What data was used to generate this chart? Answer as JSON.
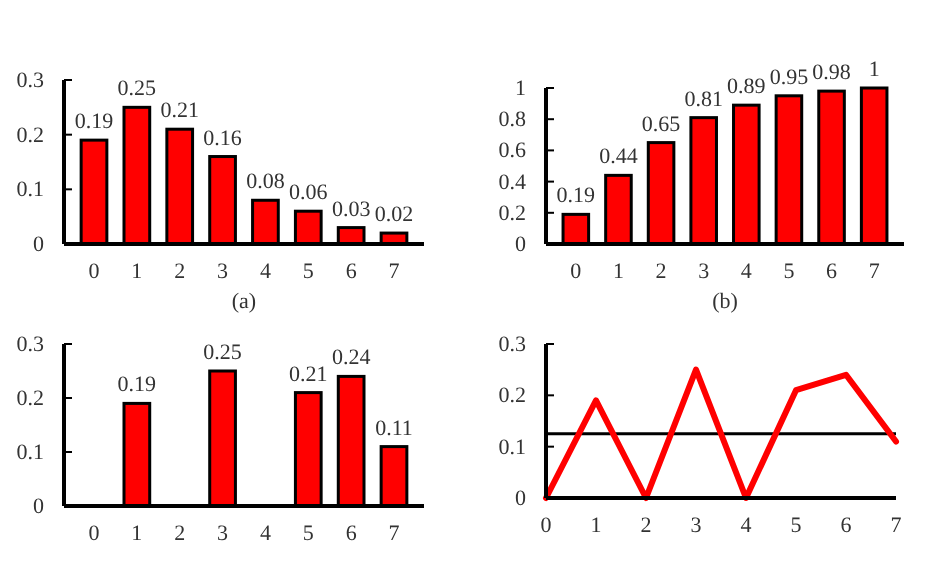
{
  "chart_data": [
    {
      "type": "bar",
      "categories": [
        "0",
        "1",
        "2",
        "3",
        "4",
        "5",
        "6",
        "7"
      ],
      "series": [
        {
          "color": "#ff0000",
          "values": [
            0.19,
            0.25,
            0.21,
            0.16,
            0.08,
            0.06,
            0.03,
            0.02
          ]
        }
      ],
      "ylim": [
        0,
        0.3
      ],
      "yticks": [
        0,
        0.1,
        0.2,
        0.3
      ],
      "data_labels": true,
      "annotations": [
        "(a)"
      ]
    },
    {
      "type": "bar",
      "categories": [
        "0",
        "1",
        "2",
        "3",
        "4",
        "5",
        "6",
        "7"
      ],
      "series": [
        {
          "color": "#ff0000",
          "values": [
            0.19,
            0.44,
            0.65,
            0.81,
            0.89,
            0.95,
            0.98,
            1
          ]
        }
      ],
      "ylim": [
        0,
        1
      ],
      "yticks": [
        0,
        0.2,
        0.4,
        0.6,
        0.8,
        1
      ],
      "data_labels": true,
      "annotations": [
        "(b)"
      ]
    },
    {
      "type": "bar",
      "categories": [
        "0",
        "1",
        "2",
        "3",
        "4",
        "5",
        "6",
        "7"
      ],
      "series": [
        {
          "color": "#ff0000",
          "values": [
            0,
            0.19,
            0,
            0.25,
            0,
            0.21,
            0.24,
            0.11
          ],
          "value_labels": [
            null,
            "0.19",
            null,
            "0.25",
            null,
            "0.21",
            "0.24",
            "0.11"
          ]
        }
      ],
      "ylim": [
        0,
        0.3
      ],
      "yticks": [
        0,
        0.1,
        0.2,
        0.3
      ]
    },
    {
      "type": "line",
      "x": [
        0,
        1,
        2,
        3,
        4,
        5,
        6,
        7
      ],
      "series": [
        {
          "color": "#ff0000",
          "values": [
            0,
            0.19,
            0,
            0.25,
            0,
            0.21,
            0.24,
            0.11
          ]
        }
      ],
      "xlim": [
        0,
        7
      ],
      "xticks": [
        0,
        1,
        2,
        3,
        4,
        5,
        6,
        7
      ],
      "ylim": [
        0,
        0.3
      ],
      "yticks": [
        0,
        0.1,
        0.2,
        0.3
      ],
      "ref_lines": [
        {
          "axis": "y",
          "value": 0.125,
          "color": "#000000"
        }
      ],
      "marker": "none",
      "line_style": "solid"
    }
  ]
}
